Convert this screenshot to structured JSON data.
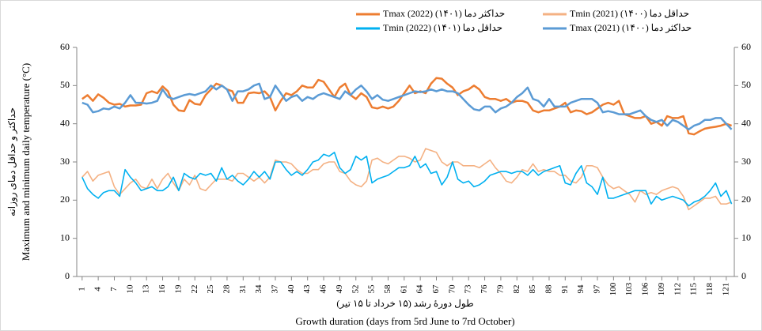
{
  "chart_data": {
    "type": "line",
    "y_label": "Maximum and minimum daily temperature (°C)",
    "y_label_fa": "حداکثر و حداقل دمای روزانه",
    "x_label_fa": "طول دورهٔ رشد (۱۵ خرداد تا ۱۵ تیر)",
    "x_label": "Growth duration (days  from 5rd June to 7rd October)",
    "x": [
      1,
      2,
      3,
      4,
      5,
      6,
      7,
      8,
      9,
      10,
      11,
      12,
      13,
      14,
      15,
      16,
      17,
      18,
      19,
      20,
      21,
      22,
      23,
      24,
      25,
      26,
      27,
      28,
      29,
      30,
      31,
      32,
      33,
      34,
      35,
      36,
      37,
      38,
      39,
      40,
      41,
      42,
      43,
      44,
      45,
      46,
      47,
      48,
      49,
      50,
      51,
      52,
      53,
      54,
      55,
      56,
      57,
      58,
      59,
      60,
      61,
      62,
      63,
      64,
      65,
      66,
      67,
      68,
      69,
      70,
      71,
      72,
      73,
      74,
      75,
      76,
      77,
      78,
      79,
      80,
      81,
      82,
      83,
      84,
      85,
      86,
      87,
      88,
      89,
      90,
      91,
      92,
      93,
      94,
      95,
      96,
      97,
      98,
      99,
      100,
      101,
      102,
      103,
      104,
      105,
      106,
      107,
      108,
      109,
      110,
      111,
      112,
      113,
      114,
      115,
      116,
      117,
      118,
      119,
      120,
      121,
      122
    ],
    "xlim": [
      0,
      122.5
    ],
    "xticks": [
      1,
      4,
      7,
      10,
      13,
      16,
      19,
      22,
      25,
      28,
      31,
      34,
      37,
      40,
      43,
      46,
      49,
      52,
      55,
      58,
      61,
      64,
      67,
      70,
      73,
      76,
      79,
      82,
      85,
      88,
      91,
      94,
      97,
      100,
      103,
      106,
      109,
      112,
      115,
      118,
      121
    ],
    "ylim": [
      0,
      60
    ],
    "yticks": [
      0,
      10,
      20,
      30,
      40,
      50,
      60
    ],
    "y2lim": [
      0,
      60
    ],
    "y2ticks": [
      0,
      10,
      20,
      30,
      40,
      50,
      60
    ],
    "series": [
      {
        "name": "Tmax (2022) (۱۴۰۱) حداکثر دما",
        "color": "#ed7d31",
        "values": [
          46.5,
          47.5,
          46,
          47.7,
          46.8,
          45.5,
          45,
          45.2,
          44.5,
          44.8,
          44.8,
          45,
          48,
          48.5,
          48,
          49.8,
          48.5,
          45,
          43.5,
          43.3,
          46.2,
          45.2,
          45,
          47.5,
          49,
          50.5,
          50,
          49,
          48.5,
          45.5,
          45.5,
          48,
          48.2,
          48,
          48.5,
          47,
          43.5,
          46,
          48,
          47.5,
          48.5,
          50,
          49.5,
          49.5,
          51.5,
          51,
          49,
          47,
          49.5,
          50.5,
          47.5,
          46.5,
          48,
          47,
          44.3,
          44,
          44.5,
          44,
          44.5,
          46,
          48,
          50,
          48,
          48.5,
          48,
          50.5,
          52,
          51.8,
          50.5,
          49.5,
          47.5,
          48.5,
          49,
          50,
          49,
          47,
          46.5,
          46.5,
          46,
          46.5,
          45.5,
          46,
          46,
          45.5,
          43.5,
          43,
          43.5,
          43.5,
          44,
          44.5,
          45.5,
          43,
          43.5,
          43.3,
          42.5,
          43,
          44,
          45,
          45.5,
          45,
          46,
          42.5,
          42,
          41.5,
          41.5,
          42,
          40,
          40.5,
          39.5,
          42,
          41.5,
          41.5,
          42,
          37.5,
          37.2,
          38,
          38.7,
          39,
          39.2,
          39.5,
          40,
          39.5
        ]
      },
      {
        "name": "Tmin (2021) (۱۴۰۰) حداقل دما",
        "color": "#f4b183",
        "values": [
          26,
          27.5,
          25,
          26.5,
          27,
          27.5,
          23.5,
          21.5,
          23,
          24.5,
          25.5,
          23.5,
          23,
          25.5,
          23,
          25.5,
          27,
          24.5,
          22.5,
          25.5,
          24,
          26.5,
          23,
          22.5,
          24,
          25.5,
          25.5,
          25.5,
          25,
          27,
          27,
          26,
          25,
          26,
          24.5,
          26,
          30.5,
          30,
          30,
          29.5,
          28,
          27,
          27,
          28,
          28,
          29.5,
          30,
          30,
          27.5,
          27,
          25,
          24,
          23.5,
          25,
          30.5,
          31,
          30,
          29.5,
          30.5,
          31.5,
          31.5,
          31,
          30,
          30.5,
          33.5,
          33,
          32.5,
          30,
          29,
          30,
          30,
          29,
          29,
          29,
          28.5,
          29.5,
          30.5,
          28.5,
          27,
          25,
          24.5,
          26,
          28,
          27.5,
          29.5,
          27.5,
          28,
          27.5,
          27.5,
          26.5,
          26.5,
          25,
          24.5,
          26,
          29,
          29,
          28.5,
          26,
          24,
          23,
          23.5,
          22.5,
          21.5,
          19.5,
          22.5,
          21.5,
          22,
          21.5,
          22.5,
          23,
          23.5,
          23,
          21,
          17.5,
          18.5,
          19.5,
          20.5,
          20.5,
          21,
          19,
          19,
          19.5
        ]
      },
      {
        "name": "Tmin (2022) (۱۴۰۱) حداقل دما",
        "color": "#00b0f0",
        "values": [
          26,
          23,
          21.5,
          20.5,
          22,
          22.5,
          22.5,
          21,
          28,
          26,
          24.5,
          22.5,
          23,
          23.5,
          22.5,
          22.5,
          23.5,
          26,
          22.5,
          27,
          26,
          25.5,
          27,
          26.5,
          27,
          25,
          28.5,
          25.5,
          26.5,
          25,
          24,
          25.5,
          27.5,
          26,
          27.5,
          25.5,
          30,
          30,
          28,
          26.5,
          27.5,
          26.5,
          28,
          30,
          30.5,
          32,
          31.5,
          32.5,
          28.5,
          27,
          28,
          31.5,
          30.5,
          31.5,
          24.5,
          25.5,
          26,
          26.5,
          27.5,
          28.5,
          28.5,
          29,
          31.5,
          28.5,
          29.5,
          27,
          27.5,
          24,
          26,
          30,
          25.5,
          24.5,
          25,
          23.5,
          24,
          25,
          26.5,
          27,
          27.5,
          27.5,
          27,
          27.5,
          27.5,
          26.5,
          28,
          26.5,
          27.5,
          28,
          28.5,
          29,
          24.5,
          24,
          27,
          29,
          24.5,
          23.5,
          21.5,
          26,
          20.5,
          20.5,
          21,
          21.5,
          22,
          22.5,
          22.5,
          22.5,
          19,
          21,
          20,
          20.5,
          21,
          20.5,
          20,
          18.5,
          19.5,
          20,
          21,
          22.5,
          24.5,
          21,
          22.5,
          19
        ]
      },
      {
        "name": "Tmax (2021) (۱۴۰۰) حداکثر دما",
        "color": "#5b9bd5",
        "values": [
          45.5,
          45,
          43,
          43.3,
          44,
          43.8,
          44.5,
          44,
          45.5,
          47.5,
          45.5,
          45.5,
          45.3,
          45.5,
          46,
          49,
          47,
          46.5,
          47,
          47.5,
          47.8,
          47.5,
          48,
          48.5,
          50,
          49,
          50,
          49,
          46,
          48.5,
          48.5,
          49,
          50,
          50.5,
          46.5,
          47,
          50,
          48,
          46,
          47,
          47.5,
          46,
          47,
          46.5,
          47.5,
          48,
          47.5,
          47,
          46.5,
          48.5,
          47.5,
          49,
          50,
          48.5,
          46.5,
          47.5,
          46.3,
          46,
          46.5,
          47,
          47.5,
          48,
          48.5,
          48.3,
          48.5,
          49,
          48.5,
          49,
          48.5,
          48.5,
          48,
          46.5,
          45,
          43.8,
          43.5,
          44.5,
          44.5,
          43,
          44,
          44.5,
          45.5,
          47,
          48,
          49.5,
          46.5,
          46,
          44.5,
          46.5,
          44.5,
          44.5,
          44.5,
          45.5,
          46,
          46.5,
          46.5,
          46.5,
          45.5,
          43,
          43.3,
          43,
          42.5,
          42.5,
          42.5,
          43,
          43.5,
          42,
          41,
          40.5,
          41,
          39.5,
          41,
          40.5,
          39.5,
          38.5,
          39.5,
          40,
          41,
          41,
          41.5,
          41.5,
          40,
          38.5
        ]
      }
    ]
  }
}
